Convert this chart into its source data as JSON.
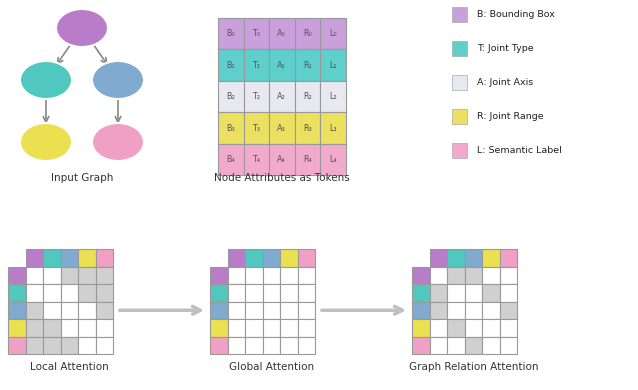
{
  "colors": {
    "purple": "#C9A0DC",
    "teal": "#5ECFCA",
    "blue": "#85B8D8",
    "yellow": "#EBE060",
    "pink": "#F2AACC",
    "gray": "#D0D0D0",
    "white": "#FFFFFF",
    "gl": "#999999",
    "node_purple": "#B87CC8",
    "node_teal": "#50C8C0",
    "node_blue": "#80AACF",
    "node_yellow": "#EAE050",
    "node_pink": "#F0A0C4"
  },
  "legend": [
    {
      "label": "B: Bounding Box",
      "color": "#C9A0DC"
    },
    {
      "label": "T: Joint Type",
      "color": "#5ECFCA"
    },
    {
      "label": "A: Joint Axis",
      "color": "#E8E8F0"
    },
    {
      "label": "R: Joint Range",
      "color": "#EBE060"
    },
    {
      "label": "L: Semantic Label",
      "color": "#F2AACC"
    }
  ],
  "token_row_colors": [
    "#C9A0DC",
    "#5ECFCA",
    "#E8E8F0",
    "#EBE060",
    "#F2AACC"
  ],
  "node_rows": [
    [
      "B₀",
      "T₀",
      "A₀",
      "R₀",
      "L₀"
    ],
    [
      "B₁",
      "T₁",
      "A₁",
      "R₁",
      "L₁"
    ],
    [
      "B₂",
      "T₂",
      "A₂",
      "R₂",
      "L₂"
    ],
    [
      "B₃",
      "T₃",
      "A₃",
      "R₃",
      "L₃"
    ],
    [
      "B₄",
      "T₄",
      "A₄",
      "R₄",
      "L₄"
    ]
  ],
  "bottom_labels": [
    "Local Attention",
    "Global Attention",
    "Graph Relation Attention"
  ]
}
